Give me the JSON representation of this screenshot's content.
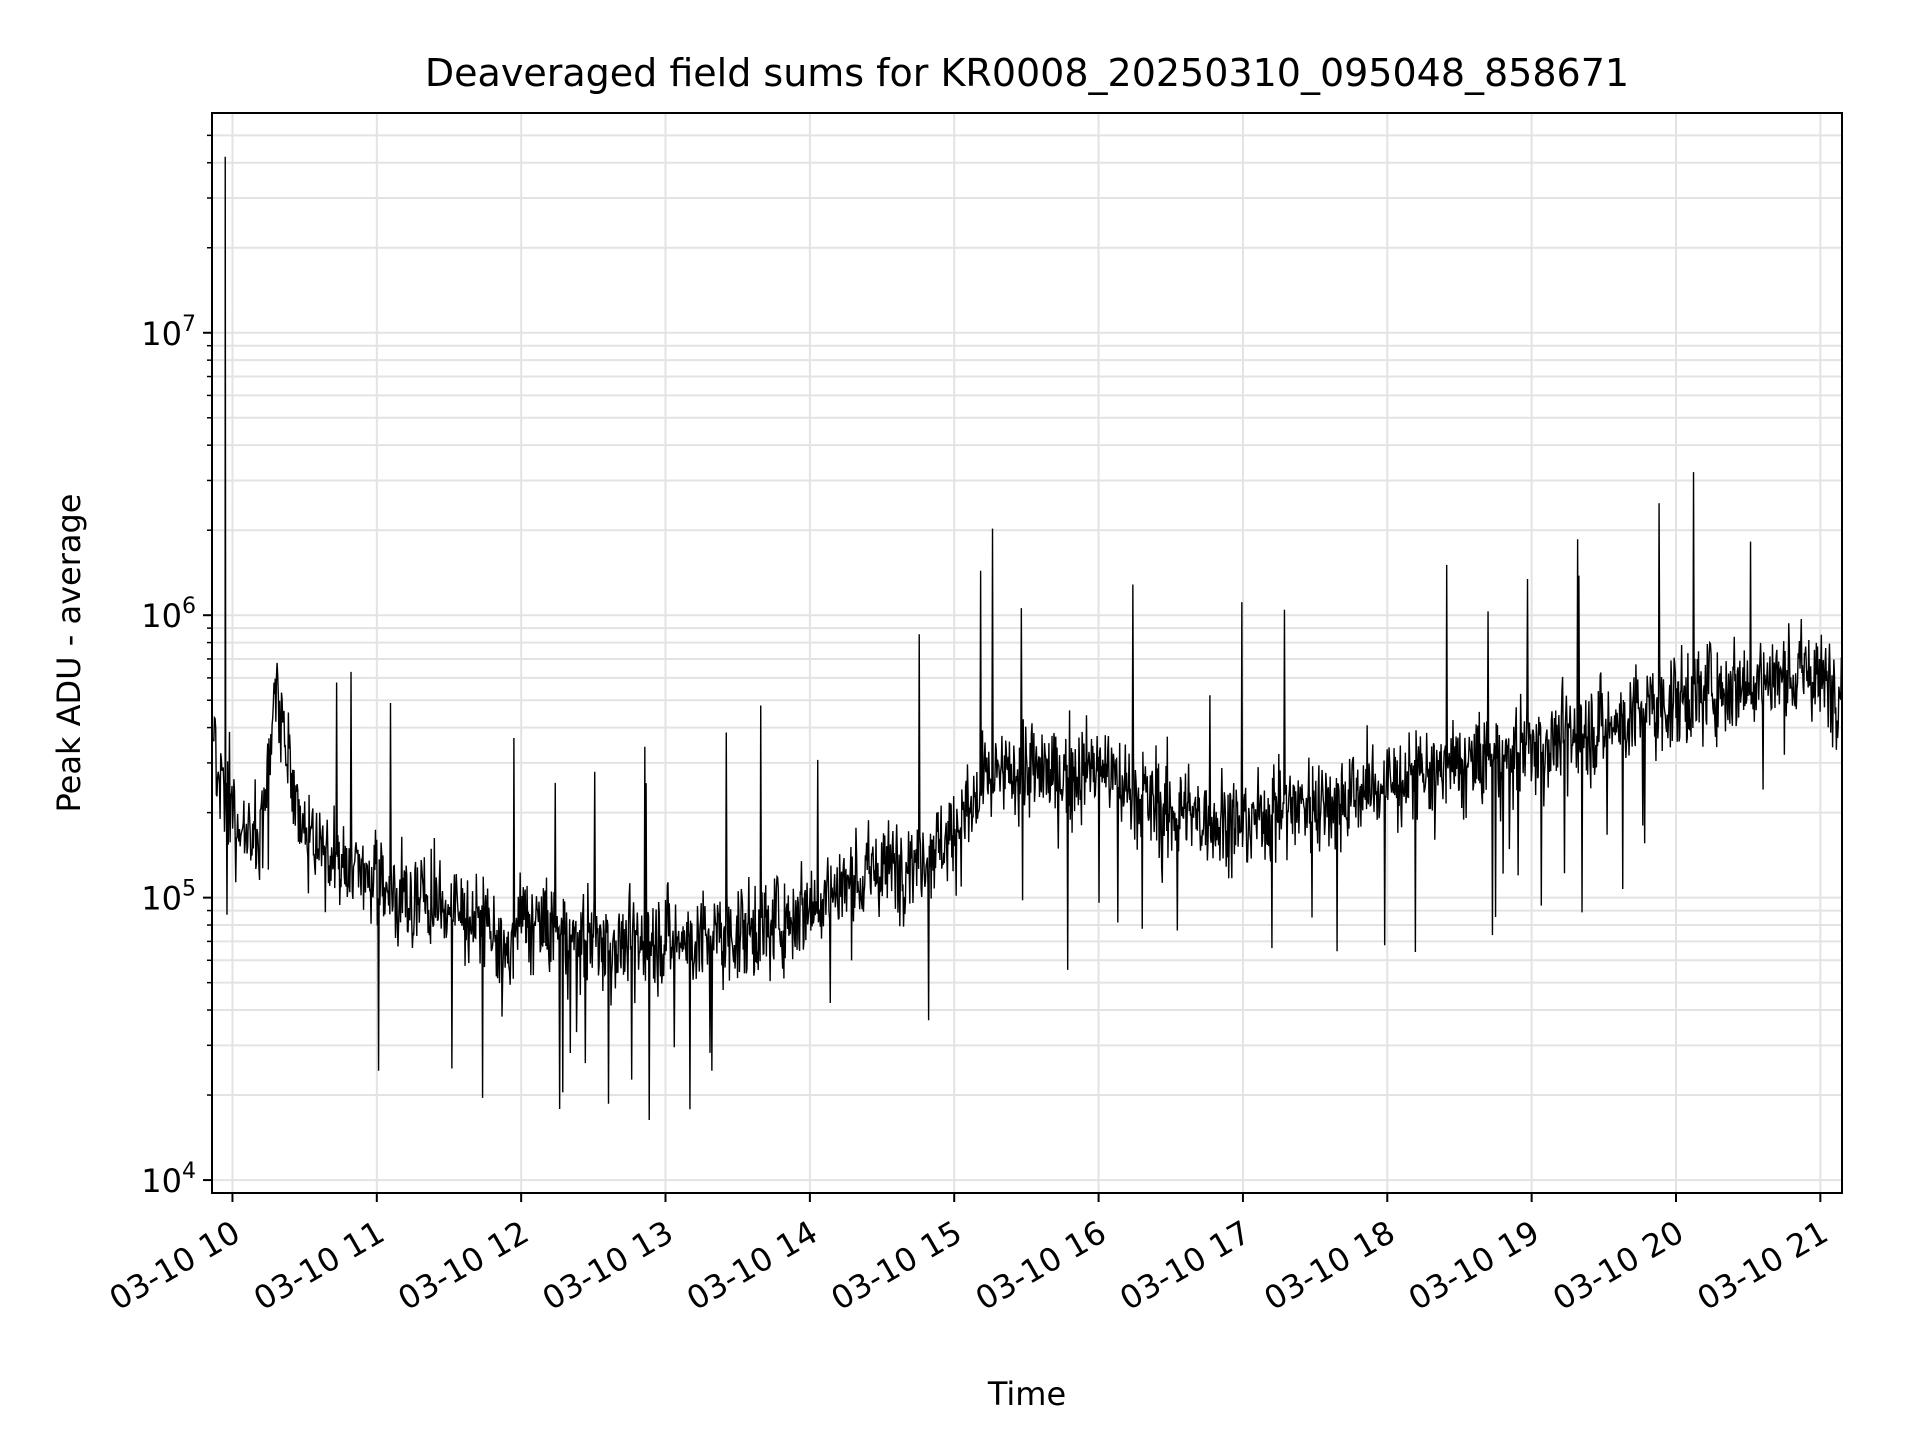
{
  "chart_data": {
    "type": "line",
    "title": "Deaveraged field sums for KR0008_20250310_095048_858671",
    "xlabel": "Time",
    "ylabel": "Peak ADU - average",
    "yscale": "log",
    "ylim": [
      9000,
      60000000
    ],
    "xlim": [
      "2025-03-10 09:51:30",
      "2025-03-10 21:09:00"
    ],
    "xticks": [
      "03-10 10",
      "03-10 11",
      "03-10 12",
      "03-10 13",
      "03-10 14",
      "03-10 15",
      "03-10 16",
      "03-10 17",
      "03-10 18",
      "03-10 19",
      "03-10 20",
      "03-10 21"
    ],
    "yticks": [
      "10^4",
      "10^5",
      "10^6",
      "10^7"
    ],
    "grid": true,
    "legend": "none",
    "series": [
      {
        "name": "",
        "color": "#000000",
        "x": [
          "2025-03-10 09:52",
          "2025-03-10 09:55",
          "2025-03-10 09:57",
          "2025-03-10 10:00",
          "2025-03-10 10:03",
          "2025-03-10 10:10",
          "2025-03-10 10:15",
          "2025-03-10 10:18",
          "2025-03-10 10:20",
          "2025-03-10 10:30",
          "2025-03-10 10:45",
          "2025-03-10 11:00",
          "2025-03-10 11:15",
          "2025-03-10 11:30",
          "2025-03-10 11:45",
          "2025-03-10 11:55",
          "2025-03-10 12:00",
          "2025-03-10 12:15",
          "2025-03-10 12:30",
          "2025-03-10 12:45",
          "2025-03-10 13:00",
          "2025-03-10 13:15",
          "2025-03-10 13:30",
          "2025-03-10 13:45",
          "2025-03-10 14:00",
          "2025-03-10 14:15",
          "2025-03-10 14:30",
          "2025-03-10 14:45",
          "2025-03-10 15:00",
          "2025-03-10 15:15",
          "2025-03-10 15:30",
          "2025-03-10 15:45",
          "2025-03-10 16:00",
          "2025-03-10 16:15",
          "2025-03-10 16:30",
          "2025-03-10 16:45",
          "2025-03-10 17:00",
          "2025-03-10 17:15",
          "2025-03-10 17:30",
          "2025-03-10 17:45",
          "2025-03-10 18:00",
          "2025-03-10 18:15",
          "2025-03-10 18:30",
          "2025-03-10 18:45",
          "2025-03-10 19:00",
          "2025-03-10 19:15",
          "2025-03-10 19:30",
          "2025-03-10 19:45",
          "2025-03-10 20:00",
          "2025-03-10 20:15",
          "2025-03-10 20:30",
          "2025-03-10 20:45",
          "2025-03-10 20:55",
          "2025-03-10 21:00",
          "2025-03-10 21:09"
        ],
        "y": [
          420000,
          250000,
          42000000,
          220000,
          180000,
          150000,
          300000,
          600000,
          450000,
          160000,
          130000,
          115000,
          100000,
          92000,
          80000,
          60000,
          85000,
          75000,
          70000,
          68000,
          72000,
          70000,
          75000,
          80000,
          95000,
          110000,
          125000,
          140000,
          170000,
          260000,
          280000,
          270000,
          290000,
          240000,
          200000,
          190000,
          180000,
          210000,
          220000,
          230000,
          250000,
          270000,
          290000,
          310000,
          340000,
          370000,
          400000,
          450000,
          500000,
          550000,
          580000,
          600000,
          620000,
          580000,
          560000
        ]
      }
    ]
  }
}
